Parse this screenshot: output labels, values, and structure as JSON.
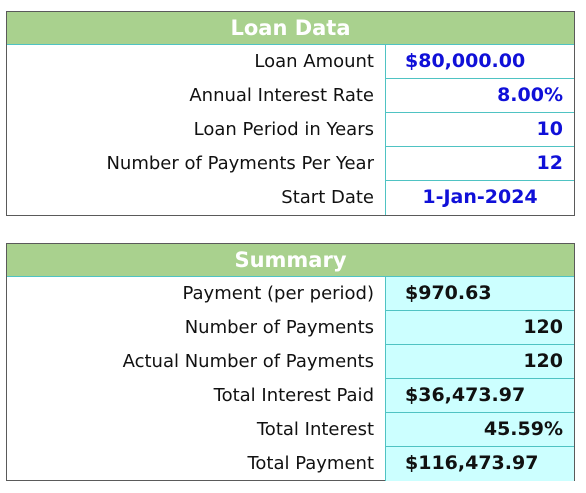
{
  "loan_data": {
    "title": "Loan Data",
    "rows": [
      {
        "label": "Loan Amount",
        "value": "$80,000.00"
      },
      {
        "label": "Annual Interest Rate",
        "value": "8.00%"
      },
      {
        "label": "Loan Period in Years",
        "value": "10"
      },
      {
        "label": "Number of Payments Per Year",
        "value": "12"
      },
      {
        "label": "Start Date",
        "value": "1-Jan-2024"
      }
    ]
  },
  "summary": {
    "title": "Summary",
    "rows": [
      {
        "label": "Payment (per period)",
        "value": "$970.63"
      },
      {
        "label": "Number of Payments",
        "value": "120"
      },
      {
        "label": "Actual Number of Payments",
        "value": "120"
      },
      {
        "label": "Total Interest Paid",
        "value": "$36,473.97"
      },
      {
        "label": "Total Interest",
        "value": "45.59%"
      },
      {
        "label": "Total Payment",
        "value": "$116,473.97"
      }
    ]
  },
  "colors": {
    "header_bg": "#a9d18e",
    "input_text": "#1010d8",
    "summary_cell_bg": "#ccffff",
    "grid_line": "#4fc3c3"
  }
}
